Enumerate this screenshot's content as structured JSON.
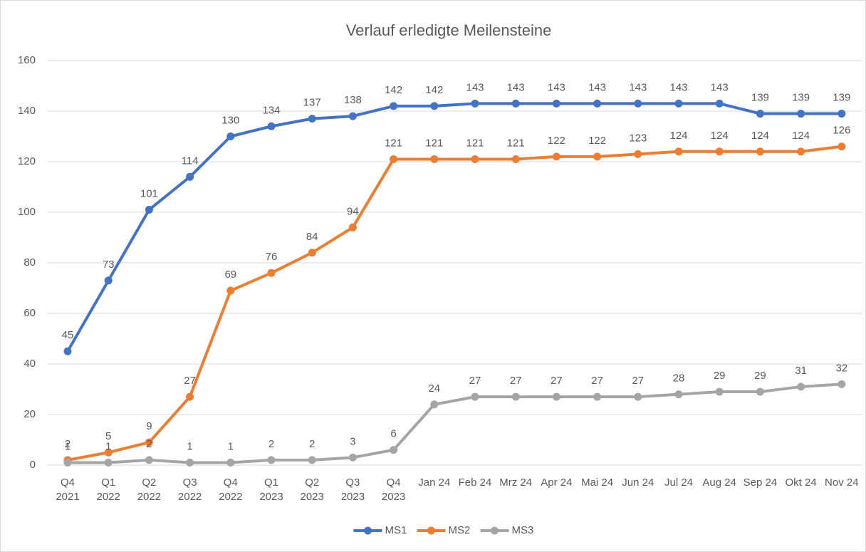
{
  "chart_data": {
    "type": "line",
    "title": "Verlauf erledigte Meilensteine",
    "categories": [
      "Q4\n2021",
      "Q1\n2022",
      "Q2\n2022",
      "Q3\n2022",
      "Q4\n2022",
      "Q1\n2023",
      "Q2\n2023",
      "Q3\n2023",
      "Q4\n2023",
      "Jan 24",
      "Feb 24",
      "Mrz 24",
      "Apr 24",
      "Mai 24",
      "Jun 24",
      "Jul 24",
      "Aug 24",
      "Sep 24",
      "Okt 24",
      "Nov 24"
    ],
    "series": [
      {
        "name": "MS1",
        "color": "#4472c4",
        "values": [
          45,
          73,
          101,
          114,
          130,
          134,
          137,
          138,
          142,
          142,
          143,
          143,
          143,
          143,
          143,
          143,
          143,
          139,
          139,
          139
        ]
      },
      {
        "name": "MS2",
        "color": "#ed7d31",
        "values": [
          2,
          5,
          9,
          27,
          69,
          76,
          84,
          94,
          121,
          121,
          121,
          121,
          122,
          122,
          123,
          124,
          124,
          124,
          124,
          126
        ]
      },
      {
        "name": "MS3",
        "color": "#a5a5a5",
        "values": [
          1,
          1,
          2,
          1,
          1,
          2,
          2,
          3,
          6,
          24,
          27,
          27,
          27,
          27,
          27,
          28,
          29,
          29,
          31,
          32
        ]
      }
    ],
    "ylim": [
      0,
      160
    ],
    "yticks": [
      0,
      20,
      40,
      60,
      80,
      100,
      120,
      140,
      160
    ],
    "grid": true,
    "legend": "bottom"
  }
}
